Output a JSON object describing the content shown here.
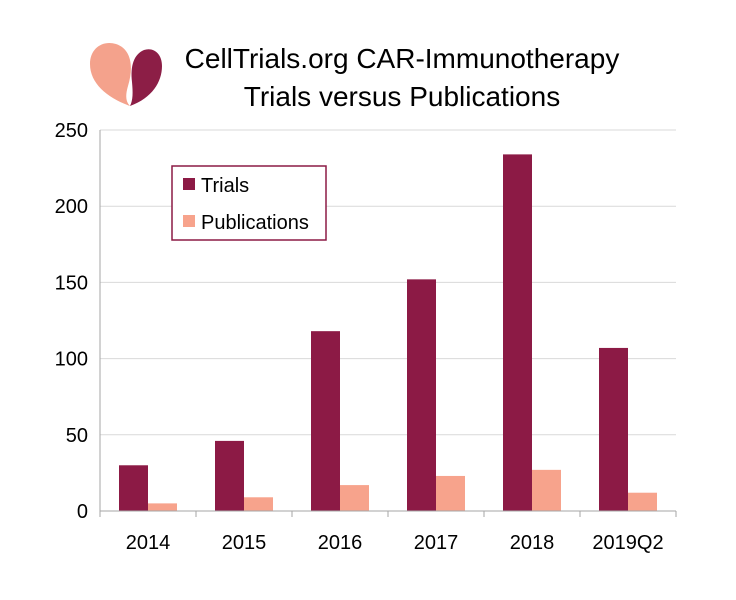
{
  "logo": {
    "name": "CellTrials logo",
    "colors": [
      "#f4a28c",
      "#8c1e46"
    ]
  },
  "chart_data": {
    "type": "bar",
    "title": [
      "CellTrials.org CAR-Immunotherapy",
      "Trials versus Publications"
    ],
    "categories": [
      "2014",
      "2015",
      "2016",
      "2017",
      "2018",
      "2019Q2"
    ],
    "series": [
      {
        "name": "Trials",
        "color": "#8c1a45",
        "values": [
          30,
          46,
          118,
          152,
          234,
          107
        ]
      },
      {
        "name": "Publications",
        "color": "#f7a38c",
        "values": [
          5,
          9,
          17,
          23,
          27,
          12
        ]
      }
    ],
    "yticks": [
      "0",
      "50",
      "100",
      "150",
      "200",
      "250"
    ],
    "ylim": [
      0,
      250
    ],
    "grid": true,
    "legend": "top-left inside plot"
  }
}
